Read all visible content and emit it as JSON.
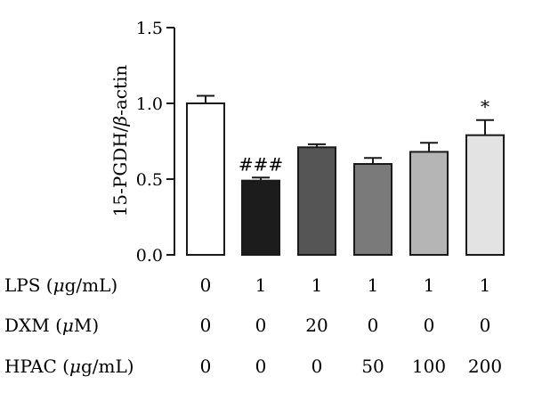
{
  "chart_data": {
    "type": "bar",
    "title": "",
    "xlabel": "",
    "ylabel_parts": [
      "15-PGDH/",
      "β",
      "-actin"
    ],
    "ylim": [
      0,
      1.5
    ],
    "yticks": [
      0.0,
      0.5,
      1.0,
      1.5
    ],
    "ytick_labels": [
      "0.0",
      "0.5",
      "1.0",
      "1.5"
    ],
    "grid": false,
    "bars": [
      {
        "value": 1.0,
        "error": 0.05,
        "color": "#ffffff",
        "annotation": ""
      },
      {
        "value": 0.49,
        "error": 0.02,
        "color": "#1c1c1c",
        "annotation": "###"
      },
      {
        "value": 0.71,
        "error": 0.02,
        "color": "#555555",
        "annotation": ""
      },
      {
        "value": 0.6,
        "error": 0.04,
        "color": "#7a7a7a",
        "annotation": ""
      },
      {
        "value": 0.68,
        "error": 0.06,
        "color": "#b5b5b5",
        "annotation": ""
      },
      {
        "value": 0.79,
        "error": 0.1,
        "color": "#e3e3e3",
        "annotation": "*"
      }
    ],
    "treatment_rows": [
      {
        "label_pre": "LPS (",
        "label_mu": "μ",
        "label_post": "g/mL)",
        "values": [
          "0",
          "1",
          "1",
          "1",
          "1",
          "1"
        ]
      },
      {
        "label_pre": "DXM (",
        "label_mu": "μ",
        "label_post": "M)",
        "values": [
          "0",
          "0",
          "20",
          "0",
          "0",
          "0"
        ]
      },
      {
        "label_pre": "HPAC (",
        "label_mu": "μ",
        "label_post": "g/mL)",
        "values": [
          "0",
          "0",
          "0",
          "50",
          "100",
          "200"
        ]
      }
    ]
  }
}
